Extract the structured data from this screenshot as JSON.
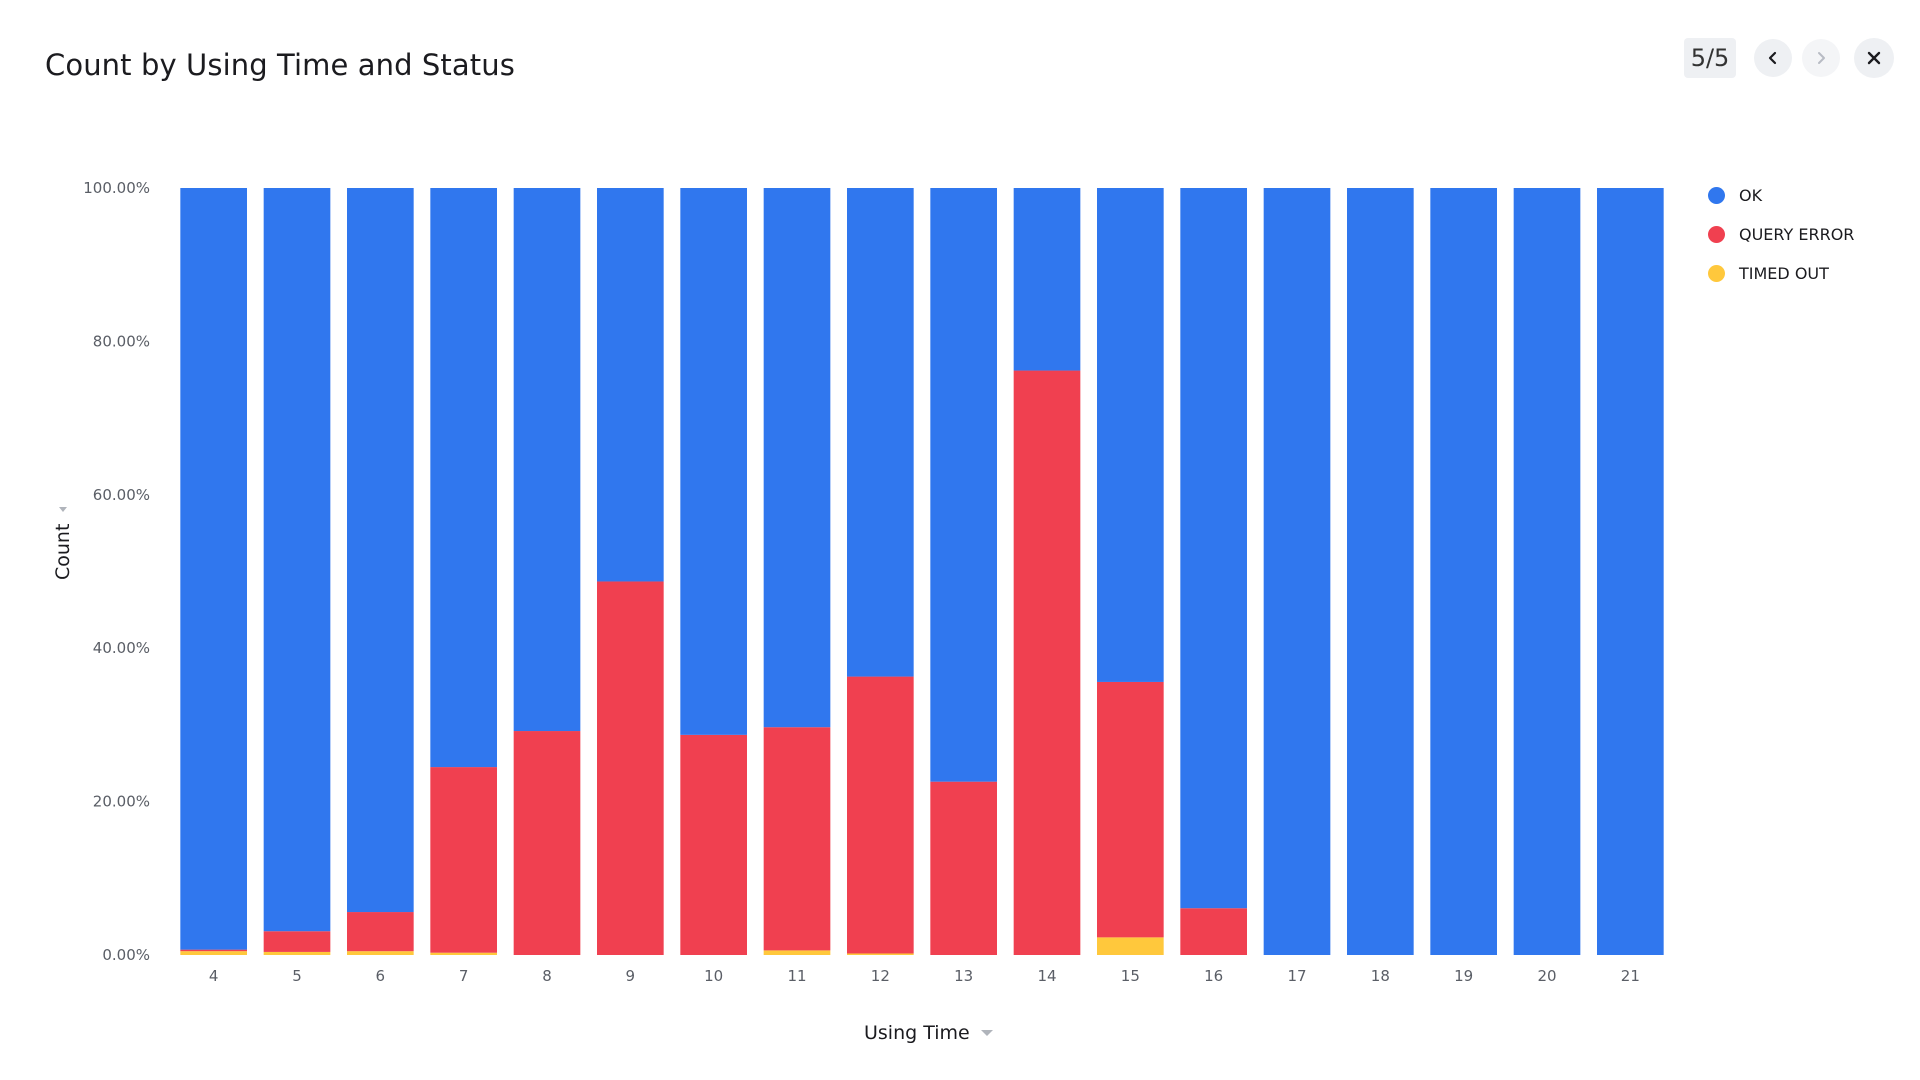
{
  "header": {
    "title": "Count by Using Time and Status",
    "counter": "5/5"
  },
  "icons": {
    "prev": "chevron-left-icon",
    "next": "chevron-right-icon",
    "close": "close-icon",
    "axis_menu": "caret-icon"
  },
  "colors": {
    "ok": "#3077EE",
    "query_error": "#F04050",
    "timed_out": "#FFC83C",
    "tick_text": "#5a5e66"
  },
  "legend": [
    {
      "label": "OK",
      "color": "#3077EE"
    },
    {
      "label": "QUERY ERROR",
      "color": "#F04050"
    },
    {
      "label": "TIMED OUT",
      "color": "#FFC83C"
    }
  ],
  "chart_data": {
    "type": "bar",
    "stacked": "percent",
    "title": "Count by Using Time and Status",
    "xlabel": "Using Time",
    "ylabel": "Count",
    "ylim": [
      0,
      100
    ],
    "y_ticks": [
      "0.00%",
      "20.00%",
      "40.00%",
      "60.00%",
      "80.00%",
      "100.00%"
    ],
    "categories": [
      "4",
      "5",
      "6",
      "7",
      "8",
      "9",
      "10",
      "11",
      "12",
      "13",
      "14",
      "15",
      "16",
      "17",
      "18",
      "19",
      "20",
      "21"
    ],
    "series": [
      {
        "name": "TIMED OUT",
        "color": "#FFC83C",
        "values": [
          0.5,
          0.4,
          0.5,
          0.3,
          0,
          0,
          0,
          0.6,
          0.2,
          0,
          0,
          2.3,
          0,
          0,
          0,
          0,
          0,
          0
        ]
      },
      {
        "name": "QUERY ERROR",
        "color": "#F04050",
        "values": [
          0.2,
          2.7,
          5.1,
          24.2,
          29.2,
          48.7,
          28.7,
          29.1,
          36.1,
          22.6,
          76.2,
          33.3,
          6.1,
          0,
          0,
          0,
          0,
          0
        ]
      },
      {
        "name": "OK",
        "color": "#3077EE",
        "values": [
          99.3,
          96.9,
          94.4,
          75.5,
          70.8,
          51.3,
          71.3,
          70.3,
          63.7,
          77.4,
          23.8,
          64.4,
          93.9,
          100,
          100,
          100,
          100,
          100
        ]
      }
    ],
    "legend_position": "top-right",
    "grid": false
  }
}
